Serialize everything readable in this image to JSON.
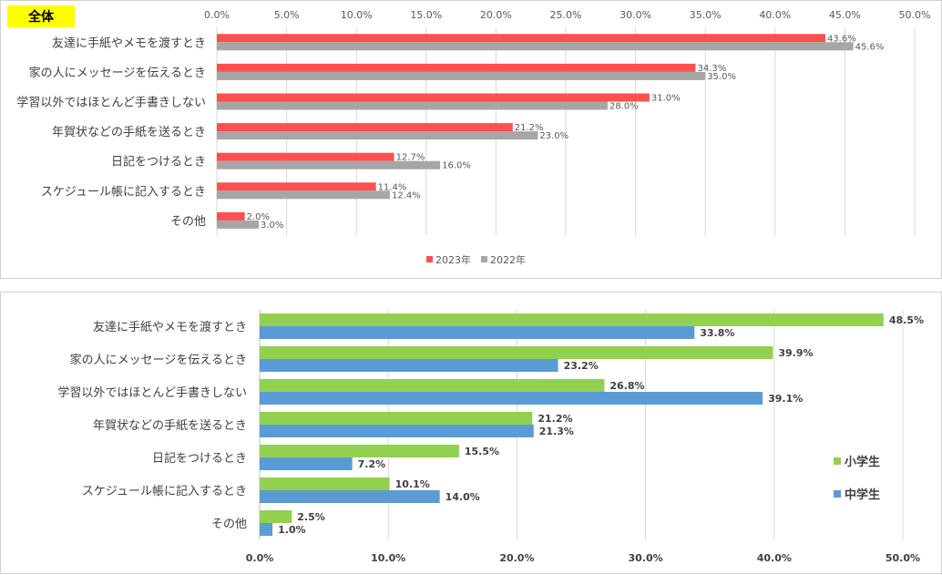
{
  "chart_data": [
    {
      "type": "bar",
      "orientation": "horizontal",
      "title": "全体",
      "title_badge_color": "#FFFF00",
      "categories": [
        "友達に手紙やメモを渡すとき",
        "家の人にメッセージを伝えるとき",
        "学習以外ではほとんど手書きしない",
        "年賀状などの手紙を送るとき",
        "日記をつけるとき",
        "スケジュール帳に記入するとき",
        "その他"
      ],
      "series": [
        {
          "name": "2023年",
          "color": "#FF5050",
          "values": [
            43.6,
            34.3,
            31.0,
            21.2,
            12.7,
            11.4,
            2.0
          ],
          "labels": [
            "43.6%",
            "34.3%",
            "31.0%",
            "21.2%",
            "12.7%",
            "11.4%",
            "2.0%"
          ]
        },
        {
          "name": "2022年",
          "color": "#A6A6A6",
          "values": [
            45.6,
            35.0,
            28.0,
            23.0,
            16.0,
            12.4,
            3.0
          ],
          "labels": [
            "45.6%",
            "35.0%",
            "28.0%",
            "23.0%",
            "16.0%",
            "12.4%",
            "3.0%"
          ]
        }
      ],
      "xlim": [
        0,
        50
      ],
      "ticks": [
        0,
        5,
        10,
        15,
        20,
        25,
        30,
        35,
        40,
        45,
        50
      ],
      "tick_labels": [
        "0.0%",
        "5.0%",
        "10.0%",
        "15.0%",
        "20.0%",
        "25.0%",
        "30.0%",
        "35.0%",
        "40.0%",
        "45.0%",
        "50.0%"
      ],
      "axis_position": "top",
      "grid": true,
      "legend": "bottom"
    },
    {
      "type": "bar",
      "orientation": "horizontal",
      "categories": [
        "友達に手紙やメモを渡すとき",
        "家の人にメッセージを伝えるとき",
        "学習以外ではほとんど手書きしない",
        "年賀状などの手紙を送るとき",
        "日記をつけるとき",
        "スケジュール帳に記入するとき",
        "その他"
      ],
      "series": [
        {
          "name": "小学生",
          "color": "#92D050",
          "values": [
            48.5,
            39.9,
            26.8,
            21.2,
            15.5,
            10.1,
            2.5
          ],
          "labels": [
            "48.5%",
            "39.9%",
            "26.8%",
            "21.2%",
            "15.5%",
            "10.1%",
            "2.5%"
          ]
        },
        {
          "name": "中学生",
          "color": "#5B9BD5",
          "values": [
            33.8,
            23.2,
            39.1,
            21.3,
            7.2,
            14.0,
            1.0
          ],
          "labels": [
            "33.8%",
            "23.2%",
            "39.1%",
            "21.3%",
            "7.2%",
            "14.0%",
            "1.0%"
          ]
        }
      ],
      "xlim": [
        0,
        50
      ],
      "ticks": [
        0,
        10,
        20,
        30,
        40,
        50
      ],
      "tick_labels": [
        "0.0%",
        "10.0%",
        "20.0%",
        "30.0%",
        "40.0%",
        "50.0%"
      ],
      "axis_position": "bottom",
      "grid": true,
      "legend": "right"
    }
  ]
}
